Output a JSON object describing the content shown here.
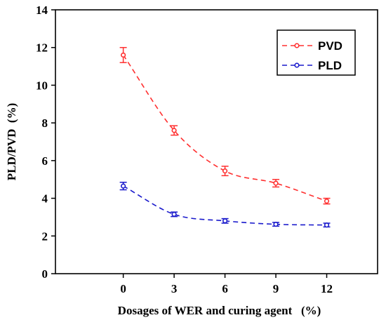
{
  "chart_data": {
    "type": "line",
    "title": "",
    "xlabel": "Dosages of WER and curing agent   (%)",
    "ylabel": "PLD/PVD  (%)",
    "x": [
      0,
      3,
      6,
      9,
      12
    ],
    "x_tick_labels": [
      "0",
      "3",
      "6",
      "9",
      "12"
    ],
    "xlim": [
      -4,
      15
    ],
    "ylim": [
      0,
      14
    ],
    "y_ticks": [
      0,
      2,
      4,
      6,
      8,
      10,
      12,
      14
    ],
    "y_tick_labels": [
      "0",
      "2",
      "4",
      "6",
      "8",
      "10",
      "12",
      "14"
    ],
    "grid": false,
    "legend_position": "top-right",
    "series": [
      {
        "name": "PVD",
        "values": [
          11.6,
          7.6,
          5.45,
          4.8,
          3.85
        ],
        "errors": [
          0.4,
          0.25,
          0.25,
          0.2,
          0.15
        ],
        "color": "#ff3030",
        "marker": "circle",
        "line_style": "dashed"
      },
      {
        "name": "PLD",
        "values": [
          4.65,
          3.15,
          2.8,
          2.62,
          2.58
        ],
        "errors": [
          0.2,
          0.12,
          0.12,
          0.1,
          0.1
        ],
        "color": "#1a1acc",
        "marker": "circle",
        "line_style": "dashed"
      }
    ]
  }
}
